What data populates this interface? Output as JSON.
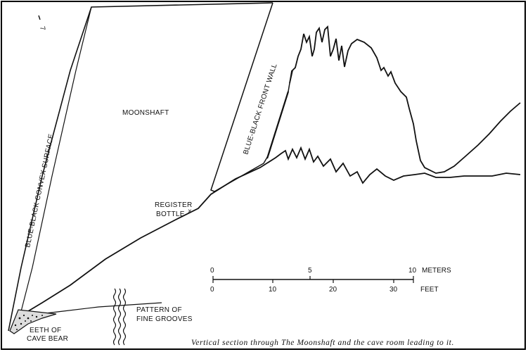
{
  "labels": {
    "left_wall": "BLUE-BLACK CONVEX SURFACE",
    "shaft": "MOONSHAFT",
    "front_wall": "BLUE-BLACK FRONT WALL",
    "register_line1": "REGISTER",
    "register_line2": "BOTTLE",
    "register_mark": "×",
    "grooves_line1": "PATTERN OF",
    "grooves_line2": "FINE GROOVES",
    "teeth_line1": "EETH OF",
    "teeth_line2": "CAVE BEAR",
    "north_mark": "7"
  },
  "scale": {
    "meters_label": "METERS",
    "feet_label": "FEET",
    "meter_ticks": [
      "0",
      "5",
      "10"
    ],
    "feet_ticks": [
      "0",
      "10",
      "20",
      "30"
    ]
  },
  "caption": "Vertical section through The Moonshaft and the cave room leading to it."
}
